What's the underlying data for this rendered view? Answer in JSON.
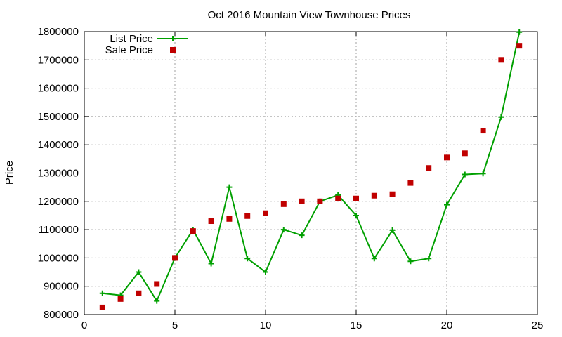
{
  "chart_data": {
    "type": "line",
    "title": "Oct 2016 Mountain View Townhouse Prices",
    "xlabel": "",
    "ylabel": "Price",
    "xlim": [
      0,
      25
    ],
    "ylim": [
      800000,
      1800000
    ],
    "x_ticks": [
      0,
      5,
      10,
      15,
      20,
      25
    ],
    "y_ticks": [
      800000,
      900000,
      1000000,
      1100000,
      1200000,
      1300000,
      1400000,
      1500000,
      1600000,
      1700000,
      1800000
    ],
    "grid": true,
    "legend_position": "top-left",
    "x": [
      1,
      2,
      3,
      4,
      5,
      6,
      7,
      8,
      9,
      10,
      11,
      12,
      13,
      14,
      15,
      16,
      17,
      18,
      19,
      20,
      21,
      22,
      23,
      24
    ],
    "series": [
      {
        "name": "List Price",
        "style": "line-plus",
        "color": "#00a000",
        "values": [
          875000,
          868000,
          950000,
          848000,
          1000000,
          1100000,
          980000,
          1250000,
          998000,
          950000,
          1100000,
          1080000,
          1200000,
          1222000,
          1150000,
          998000,
          1098000,
          988000,
          998000,
          1188000,
          1295000,
          1298000,
          1498000,
          1798000
        ]
      },
      {
        "name": "Sale Price",
        "style": "square",
        "color": "#c00000",
        "values": [
          825000,
          855000,
          875000,
          908000,
          1000000,
          1095000,
          1130000,
          1138000,
          1148000,
          1158000,
          1190000,
          1200000,
          1200000,
          1210000,
          1210000,
          1220000,
          1225000,
          1265000,
          1318000,
          1355000,
          1370000,
          1450000,
          1700000,
          1750000
        ]
      }
    ]
  }
}
